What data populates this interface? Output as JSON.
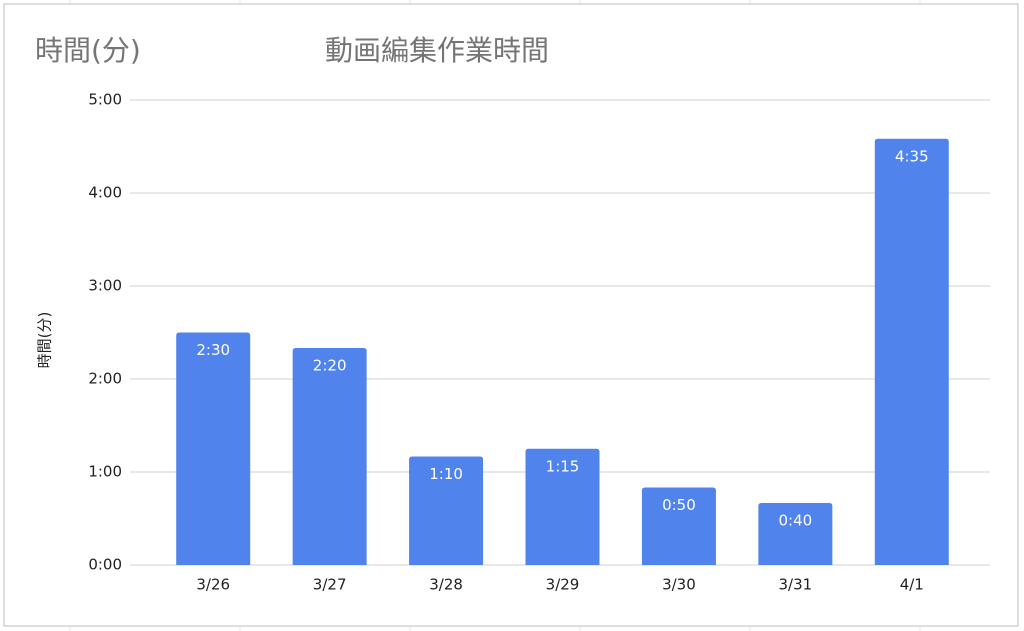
{
  "chart_data": {
    "type": "bar",
    "title": "動画編集作業時間",
    "subtitle": "時間(分)",
    "y_label": "時間(分)",
    "categories": [
      "3/26",
      "3/27",
      "3/28",
      "3/29",
      "3/30",
      "3/31",
      "4/1"
    ],
    "values": [
      2.5,
      2.3333,
      1.1667,
      1.25,
      0.8333,
      0.6667,
      4.5833
    ],
    "value_labels": [
      "2:30",
      "2:20",
      "1:10",
      "1:15",
      "0:50",
      "0:40",
      "4:35"
    ],
    "color": "#5084ec",
    "ylim": [
      0,
      5
    ],
    "yticks": [
      {
        "value": 0,
        "label": "0:00"
      },
      {
        "value": 1,
        "label": "1:00"
      },
      {
        "value": 2,
        "label": "2:00"
      },
      {
        "value": 3,
        "label": "3:00"
      },
      {
        "value": 4,
        "label": "4:00"
      },
      {
        "value": 5,
        "label": "5:00"
      }
    ],
    "grid": true
  }
}
